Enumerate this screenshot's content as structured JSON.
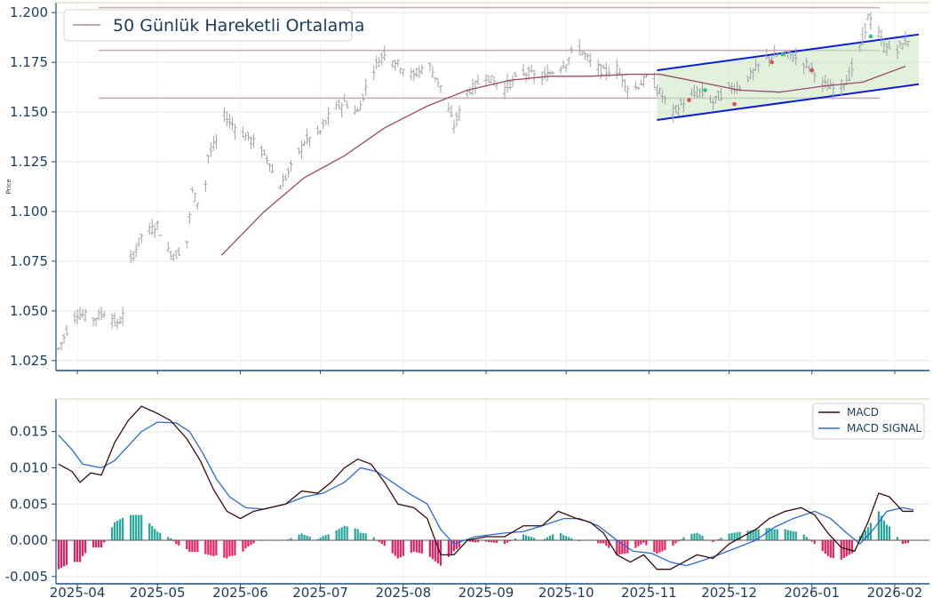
{
  "chart_data": [
    {
      "type": "ohlc",
      "ylabel": "Price",
      "ylim": [
        1.02,
        1.205
      ],
      "yticks": [
        "1.025",
        "1.050",
        "1.075",
        "1.100",
        "1.125",
        "1.150",
        "1.175",
        "1.200"
      ],
      "legend": {
        "position": "top-left",
        "label": "50 Günlük Hareketli Ortalama"
      },
      "colors": {
        "bars": "#a0a0a8",
        "ma": "#9b4a6a",
        "hlines": "#c9aeb6",
        "channel_line": "#0a1fd0",
        "channel_fill": "#c8e6c0",
        "buy_marker": "#2ec27e",
        "sell_marker": "#e04a4a"
      },
      "horizontal_levels": [
        1.157,
        1.181,
        1.2025
      ],
      "channel": {
        "start_date": "2025-11-04",
        "end_date": "2026-02-10",
        "upper": [
          1.171,
          1.189
        ],
        "lower": [
          1.146,
          1.164
        ]
      },
      "ma50": [
        [
          "2025-05-25",
          1.078
        ],
        [
          "2025-06-10",
          1.1
        ],
        [
          "2025-06-25",
          1.117
        ],
        [
          "2025-07-10",
          1.128
        ],
        [
          "2025-07-25",
          1.142
        ],
        [
          "2025-08-10",
          1.153
        ],
        [
          "2025-08-25",
          1.161
        ],
        [
          "2025-09-10",
          1.166
        ],
        [
          "2025-09-25",
          1.168
        ],
        [
          "2025-10-10",
          1.168
        ],
        [
          "2025-10-25",
          1.169
        ],
        [
          "2025-11-05",
          1.169
        ],
        [
          "2025-11-20",
          1.165
        ],
        [
          "2025-12-05",
          1.161
        ],
        [
          "2025-12-20",
          1.16
        ],
        [
          "2026-01-05",
          1.163
        ],
        [
          "2026-01-20",
          1.165
        ],
        [
          "2026-02-05",
          1.173
        ]
      ],
      "anchors": [
        [
          "2025-03-25",
          1.031
        ],
        [
          "2025-03-28",
          1.04
        ],
        [
          "2025-04-01",
          1.049
        ],
        [
          "2025-04-07",
          1.046
        ],
        [
          "2025-04-12",
          1.05
        ],
        [
          "2025-04-16",
          1.043
        ],
        [
          "2025-04-19",
          1.05
        ],
        [
          "2025-04-21",
          1.075
        ],
        [
          "2025-04-25",
          1.088
        ],
        [
          "2025-05-01",
          1.093
        ],
        [
          "2025-05-05",
          1.08
        ],
        [
          "2025-05-08",
          1.078
        ],
        [
          "2025-05-12",
          1.085
        ],
        [
          "2025-05-14",
          1.11
        ],
        [
          "2025-05-18",
          1.1
        ],
        [
          "2025-05-20",
          1.128
        ],
        [
          "2025-05-23",
          1.135
        ],
        [
          "2025-05-26",
          1.148
        ],
        [
          "2025-06-01",
          1.14
        ],
        [
          "2025-06-06",
          1.135
        ],
        [
          "2025-06-12",
          1.125
        ],
        [
          "2025-06-15",
          1.11
        ],
        [
          "2025-06-20",
          1.122
        ],
        [
          "2025-06-25",
          1.135
        ],
        [
          "2025-07-01",
          1.14
        ],
        [
          "2025-07-05",
          1.15
        ],
        [
          "2025-07-10",
          1.155
        ],
        [
          "2025-07-15",
          1.15
        ],
        [
          "2025-07-20",
          1.17
        ],
        [
          "2025-07-25",
          1.18
        ],
        [
          "2025-08-01",
          1.172
        ],
        [
          "2025-08-05",
          1.168
        ],
        [
          "2025-08-10",
          1.175
        ],
        [
          "2025-08-15",
          1.163
        ],
        [
          "2025-08-20",
          1.143
        ],
        [
          "2025-08-25",
          1.16
        ],
        [
          "2025-09-01",
          1.168
        ],
        [
          "2025-09-08",
          1.162
        ],
        [
          "2025-09-15",
          1.17
        ],
        [
          "2025-09-22",
          1.167
        ],
        [
          "2025-10-01",
          1.175
        ],
        [
          "2025-10-05",
          1.184
        ],
        [
          "2025-10-10",
          1.175
        ],
        [
          "2025-10-15",
          1.17
        ],
        [
          "2025-10-20",
          1.172
        ],
        [
          "2025-10-25",
          1.16
        ],
        [
          "2025-11-01",
          1.168
        ],
        [
          "2025-11-05",
          1.16
        ],
        [
          "2025-11-10",
          1.15
        ],
        [
          "2025-11-15",
          1.156
        ],
        [
          "2025-11-20",
          1.16
        ],
        [
          "2025-11-25",
          1.155
        ],
        [
          "2025-12-01",
          1.162
        ],
        [
          "2025-12-05",
          1.163
        ],
        [
          "2025-12-10",
          1.17
        ],
        [
          "2025-12-15",
          1.177
        ],
        [
          "2025-12-20",
          1.179
        ],
        [
          "2025-12-25",
          1.178
        ],
        [
          "2026-01-01",
          1.172
        ],
        [
          "2026-01-05",
          1.164
        ],
        [
          "2026-01-10",
          1.161
        ],
        [
          "2026-01-15",
          1.168
        ],
        [
          "2026-01-20",
          1.186
        ],
        [
          "2026-01-22",
          1.198
        ],
        [
          "2026-01-25",
          1.192
        ],
        [
          "2026-01-28",
          1.183
        ],
        [
          "2026-02-01",
          1.181
        ],
        [
          "2026-02-05",
          1.185
        ],
        [
          "2026-02-08",
          1.19
        ]
      ],
      "buy_markers": [
        [
          "2025-11-22",
          1.161
        ],
        [
          "2025-12-21",
          1.179
        ],
        [
          "2026-01-23",
          1.188
        ]
      ],
      "sell_markers": [
        [
          "2025-11-16",
          1.156
        ],
        [
          "2025-12-03",
          1.154
        ],
        [
          "2025-12-17",
          1.175
        ],
        [
          "2026-01-01",
          1.171
        ]
      ]
    },
    {
      "type": "macd",
      "ylim": [
        -0.006,
        0.0195
      ],
      "yticks": [
        "-0.005",
        "0.000",
        "0.005",
        "0.010",
        "0.015"
      ],
      "legend": {
        "position": "top-right",
        "entries": [
          "MACD",
          "MACD SIGNAL"
        ]
      },
      "colors": {
        "macd": "#3a0a0a",
        "signal": "#2a6bd1",
        "hist_pos": "#26a69a",
        "hist_neg": "#e91e63",
        "zero": "#555555"
      },
      "macd": [
        [
          "2025-03-25",
          0.0105
        ],
        [
          "2025-03-30",
          0.0095
        ],
        [
          "2025-04-02",
          0.008
        ],
        [
          "2025-04-06",
          0.0093
        ],
        [
          "2025-04-10",
          0.009
        ],
        [
          "2025-04-15",
          0.0135
        ],
        [
          "2025-04-20",
          0.0165
        ],
        [
          "2025-04-25",
          0.0185
        ],
        [
          "2025-05-01",
          0.0175
        ],
        [
          "2025-05-06",
          0.0165
        ],
        [
          "2025-05-12",
          0.014
        ],
        [
          "2025-05-17",
          0.011
        ],
        [
          "2025-05-22",
          0.007
        ],
        [
          "2025-05-27",
          0.004
        ],
        [
          "2025-06-01",
          0.003
        ],
        [
          "2025-06-06",
          0.004
        ],
        [
          "2025-06-12",
          0.0045
        ],
        [
          "2025-06-18",
          0.005
        ],
        [
          "2025-06-24",
          0.0068
        ],
        [
          "2025-06-30",
          0.0065
        ],
        [
          "2025-07-05",
          0.008
        ],
        [
          "2025-07-10",
          0.01
        ],
        [
          "2025-07-15",
          0.0112
        ],
        [
          "2025-07-20",
          0.0105
        ],
        [
          "2025-07-25",
          0.008
        ],
        [
          "2025-07-30",
          0.005
        ],
        [
          "2025-08-05",
          0.0045
        ],
        [
          "2025-08-10",
          0.003
        ],
        [
          "2025-08-15",
          -0.002
        ],
        [
          "2025-08-20",
          -0.002
        ],
        [
          "2025-08-25",
          0.0
        ],
        [
          "2025-09-01",
          0.0005
        ],
        [
          "2025-09-08",
          0.0005
        ],
        [
          "2025-09-15",
          0.002
        ],
        [
          "2025-09-22",
          0.002
        ],
        [
          "2025-09-28",
          0.004
        ],
        [
          "2025-10-05",
          0.003
        ],
        [
          "2025-10-10",
          0.0025
        ],
        [
          "2025-10-15",
          0.001
        ],
        [
          "2025-10-20",
          -0.002
        ],
        [
          "2025-10-25",
          -0.003
        ],
        [
          "2025-10-30",
          -0.002
        ],
        [
          "2025-11-04",
          -0.004
        ],
        [
          "2025-11-09",
          -0.004
        ],
        [
          "2025-11-14",
          -0.003
        ],
        [
          "2025-11-19",
          -0.002
        ],
        [
          "2025-11-25",
          -0.0025
        ],
        [
          "2025-12-01",
          -0.0005
        ],
        [
          "2025-12-06",
          0.0005
        ],
        [
          "2025-12-11",
          0.0015
        ],
        [
          "2025-12-16",
          0.003
        ],
        [
          "2025-12-22",
          0.004
        ],
        [
          "2025-12-28",
          0.0045
        ],
        [
          "2026-01-02",
          0.0035
        ],
        [
          "2026-01-07",
          0.001
        ],
        [
          "2026-01-12",
          -0.001
        ],
        [
          "2026-01-17",
          -0.0015
        ],
        [
          "2026-01-22",
          0.0025
        ],
        [
          "2026-01-26",
          0.0065
        ],
        [
          "2026-01-30",
          0.006
        ],
        [
          "2026-02-04",
          0.004
        ],
        [
          "2026-02-08",
          0.004
        ]
      ],
      "signal": [
        [
          "2025-03-25",
          0.0145
        ],
        [
          "2025-03-30",
          0.0125
        ],
        [
          "2025-04-03",
          0.0105
        ],
        [
          "2025-04-10",
          0.01
        ],
        [
          "2025-04-15",
          0.011
        ],
        [
          "2025-04-20",
          0.013
        ],
        [
          "2025-04-25",
          0.015
        ],
        [
          "2025-05-01",
          0.0163
        ],
        [
          "2025-05-08",
          0.0162
        ],
        [
          "2025-05-13",
          0.015
        ],
        [
          "2025-05-18",
          0.012
        ],
        [
          "2025-05-23",
          0.0085
        ],
        [
          "2025-05-28",
          0.006
        ],
        [
          "2025-06-03",
          0.0045
        ],
        [
          "2025-06-10",
          0.0043
        ],
        [
          "2025-06-18",
          0.005
        ],
        [
          "2025-06-25",
          0.006
        ],
        [
          "2025-07-02",
          0.0065
        ],
        [
          "2025-07-10",
          0.008
        ],
        [
          "2025-07-16",
          0.01
        ],
        [
          "2025-07-22",
          0.0095
        ],
        [
          "2025-07-28",
          0.008
        ],
        [
          "2025-08-03",
          0.0065
        ],
        [
          "2025-08-10",
          0.005
        ],
        [
          "2025-08-15",
          0.0015
        ],
        [
          "2025-08-20",
          -0.0005
        ],
        [
          "2025-08-28",
          0.0005
        ],
        [
          "2025-09-08",
          0.001
        ],
        [
          "2025-09-15",
          0.0012
        ],
        [
          "2025-09-22",
          0.002
        ],
        [
          "2025-09-30",
          0.003
        ],
        [
          "2025-10-06",
          0.003
        ],
        [
          "2025-10-13",
          0.002
        ],
        [
          "2025-10-20",
          0.0
        ],
        [
          "2025-10-26",
          -0.0015
        ],
        [
          "2025-11-02",
          -0.0018
        ],
        [
          "2025-11-09",
          -0.003
        ],
        [
          "2025-11-15",
          -0.0035
        ],
        [
          "2025-11-21",
          -0.0028
        ],
        [
          "2025-11-27",
          -0.002
        ],
        [
          "2025-12-04",
          -0.001
        ],
        [
          "2025-12-11",
          0.0
        ],
        [
          "2025-12-18",
          0.0018
        ],
        [
          "2025-12-25",
          0.003
        ],
        [
          "2026-01-02",
          0.004
        ],
        [
          "2026-01-08",
          0.003
        ],
        [
          "2026-01-14",
          0.001
        ],
        [
          "2026-01-19",
          -0.0005
        ],
        [
          "2026-01-24",
          0.0015
        ],
        [
          "2026-01-29",
          0.004
        ],
        [
          "2026-02-04",
          0.0045
        ],
        [
          "2026-02-08",
          0.0042
        ]
      ]
    }
  ],
  "xaxis": {
    "start": "2025-03-24",
    "end": "2026-02-14",
    "ticks": [
      {
        "date": "2025-04-01",
        "label": "2025-04"
      },
      {
        "date": "2025-05-01",
        "label": "2025-05"
      },
      {
        "date": "2025-06-01",
        "label": "2025-06"
      },
      {
        "date": "2025-07-01",
        "label": "2025-07"
      },
      {
        "date": "2025-08-01",
        "label": "2025-08"
      },
      {
        "date": "2025-09-01",
        "label": "2025-09"
      },
      {
        "date": "2025-10-01",
        "label": "2025-10"
      },
      {
        "date": "2025-11-01",
        "label": "2025-11"
      },
      {
        "date": "2025-12-01",
        "label": "2025-12"
      },
      {
        "date": "2026-01-01",
        "label": "2026-01"
      },
      {
        "date": "2026-02-01",
        "label": "2026-02"
      }
    ]
  },
  "style": {
    "axis_color": "#1f4e79",
    "grid": true,
    "grid_color": "#e6e6e6",
    "top_line": "#d9cfae"
  }
}
